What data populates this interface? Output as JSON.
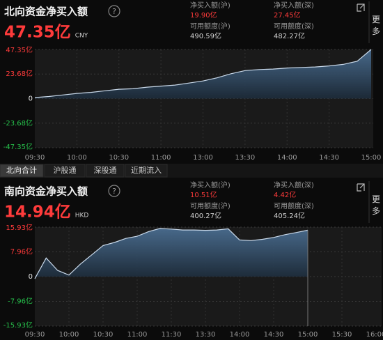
{
  "panels": [
    {
      "title": "北向资金净买入额",
      "help": "?",
      "value": "47.35亿",
      "currency": "CNY",
      "more": "更多",
      "stats": [
        {
          "label": "净买入额(沪)",
          "value": "19.90亿"
        },
        {
          "label": "净买入额(深)",
          "value": "27.45亿"
        },
        {
          "label": "可用额度(沪)",
          "value": "490.59亿"
        },
        {
          "label": "可用额度(深)",
          "value": "482.27亿"
        }
      ]
    },
    {
      "title": "南向资金净买入额",
      "help": "?",
      "value": "14.94亿",
      "currency": "HKD",
      "more": "更多",
      "stats": [
        {
          "label": "净买入额(沪)",
          "value": "10.51亿"
        },
        {
          "label": "净买入额(深)",
          "value": "4.42亿"
        },
        {
          "label": "可用额度(沪)",
          "value": "400.27亿"
        },
        {
          "label": "可用额度(深)",
          "value": "405.24亿"
        }
      ]
    }
  ],
  "tabs": [
    "北向合计",
    "沪股通",
    "深股通",
    "近期流入"
  ],
  "chart_data": [
    {
      "type": "area",
      "color": "#3b5a78",
      "line_color": "#c9d9ea",
      "grid": true,
      "categories": [
        "09:30",
        null,
        null,
        "10:00",
        null,
        null,
        "10:30",
        null,
        null,
        "11:00",
        null,
        null,
        "13:00",
        null,
        null,
        "13:30",
        null,
        null,
        "14:00",
        null,
        null,
        "14:30",
        null,
        null,
        "15:00"
      ],
      "values": [
        1,
        2,
        3.5,
        5,
        6,
        7.5,
        9,
        9.5,
        11,
        12,
        13,
        15,
        17,
        20,
        24,
        27,
        28,
        28.5,
        29.5,
        30,
        30.5,
        31.5,
        33,
        36,
        47.35
      ],
      "ylim": [
        -47.35,
        47.35
      ],
      "yticks": [
        {
          "value": 47.35,
          "label": "47.35亿"
        },
        {
          "value": 23.68,
          "label": "23.68亿"
        },
        0,
        {
          "value": -23.68,
          "label": "-23.68亿"
        },
        {
          "value": -47.35,
          "label": "-47.35亿"
        }
      ]
    },
    {
      "type": "area",
      "color": "#3b5a78",
      "line_color": "#c9d9ea",
      "grid": true,
      "categories": [
        "09:30",
        null,
        null,
        "10:00",
        null,
        null,
        "10:30",
        null,
        null,
        "11:00",
        null,
        null,
        "11:30",
        null,
        null,
        "13:30",
        null,
        null,
        "14:00",
        null,
        null,
        "14:30",
        null,
        null,
        "15:00",
        null,
        null,
        "15:30",
        null,
        null,
        "16:00"
      ],
      "values": [
        -0.7,
        6,
        2,
        0.5,
        4,
        7,
        10,
        11,
        12.3,
        13,
        14.5,
        15.5,
        15.3,
        15,
        15,
        14.9,
        15,
        15.4,
        11.8,
        11.6,
        12,
        12.6,
        13.5,
        14.2,
        14.94,
        null,
        null,
        null,
        null,
        null,
        null
      ],
      "ylim": [
        -15.93,
        15.93
      ],
      "yticks": [
        {
          "value": 15.93,
          "label": "15.93亿"
        },
        {
          "value": 7.96,
          "label": "7.96亿"
        },
        0,
        {
          "value": -7.96,
          "label": "-7.96亿"
        },
        {
          "value": -15.93,
          "label": "-15.93亿"
        }
      ]
    }
  ]
}
